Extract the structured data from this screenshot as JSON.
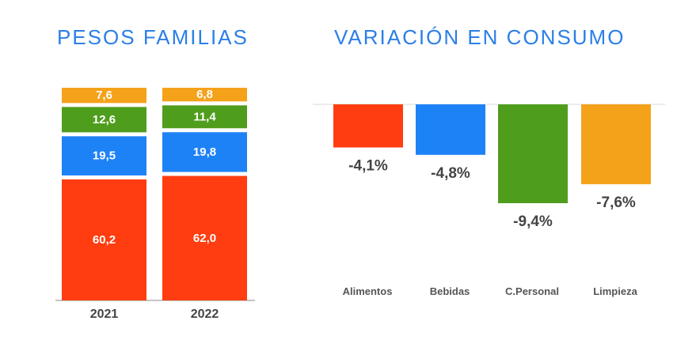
{
  "chart_data": [
    {
      "type": "bar",
      "stacked": true,
      "title": "PESOS FAMILIAS",
      "categories": [
        "2021",
        "2022"
      ],
      "series": [
        {
          "key": "alimentos",
          "values": [
            60.2,
            62.0
          ],
          "labels": [
            "60,2",
            "62,0"
          ],
          "color": "#ff3d10"
        },
        {
          "key": "bebidas",
          "values": [
            19.5,
            19.8
          ],
          "labels": [
            "19,5",
            "19,8"
          ],
          "color": "#1e82f7"
        },
        {
          "key": "cpersonal",
          "values": [
            12.6,
            11.4
          ],
          "labels": [
            "12,6",
            "11,4"
          ],
          "color": "#4f9d1d"
        },
        {
          "key": "limpieza",
          "values": [
            7.6,
            6.8
          ],
          "labels": [
            "7,6",
            "6,8"
          ],
          "color": "#f5a21b"
        }
      ],
      "ylim": [
        0,
        100
      ]
    },
    {
      "type": "bar",
      "title": "VARIACIÓN EN CONSUMO",
      "categories": [
        "Alimentos",
        "Bebidas",
        "C.Personal",
        "Limpieza"
      ],
      "values": [
        -4.1,
        -4.8,
        -9.4,
        -7.6
      ],
      "labels": [
        "-4,1%",
        "-4,8%",
        "-9,4%",
        "-7,6%"
      ],
      "colors": [
        "#ff3d10",
        "#1e82f7",
        "#4f9d1d",
        "#f5a21b"
      ]
    }
  ]
}
